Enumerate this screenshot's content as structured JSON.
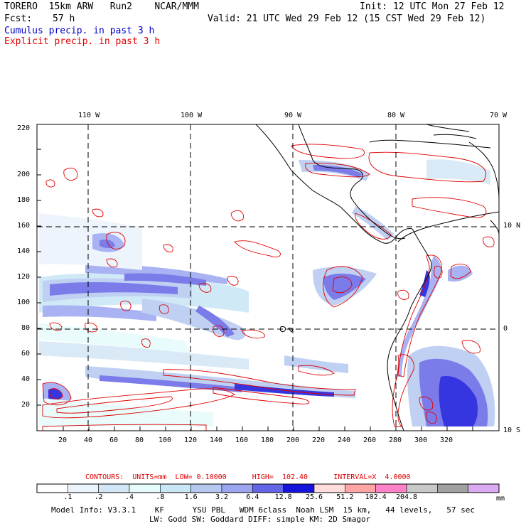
{
  "header": {
    "model": "TORERO  15km ARW   Run2    NCAR/MMM",
    "init": "Init: 12 UTC Mon 27 Feb 12",
    "fcst_label": "Fcst:",
    "fcst_value": "57 h",
    "valid": "Valid: 21 UTC Wed 29 Feb 12 (15 CST Wed 29 Feb 12)",
    "field1": "Cumulus precip. in past 3 h",
    "field2": "Explicit precip. in past 3 h"
  },
  "colors": {
    "cumulus": "#0000c8",
    "explicit": "#e00000",
    "coast": "#000000"
  },
  "map": {
    "lon_labels": [
      "110 W",
      "100 W",
      "90 W",
      "80 W",
      "70 W"
    ],
    "lat_labels": [
      "10 N",
      "0",
      "10 S"
    ],
    "x_ticks": [
      "20",
      "40",
      "60",
      "80",
      "100",
      "120",
      "140",
      "160",
      "180",
      "200",
      "220",
      "240",
      "260",
      "280",
      "300",
      "320"
    ],
    "y_ticks": [
      "20",
      "40",
      "60",
      "80",
      "100",
      "120",
      "140",
      "160",
      "180",
      "200",
      "220"
    ]
  },
  "contours": {
    "text": "CONTOURS:  UNITS=mm  LOW= 0.10000      HIGH=  102.40      INTERVAL=X  4.0000"
  },
  "colorbar": {
    "unit": "mm",
    "colors": [
      "#ffffff",
      "#ebf3fb",
      "#d3e6f5",
      "#e6fbfb",
      "#c8e6f5",
      "#b4c8f0",
      "#9ba5f0",
      "#6464e6",
      "#1414dc",
      "#ffdcdc",
      "#ffa5a5",
      "#ff82c8",
      "#c8c8c8",
      "#a0a0a0",
      "#dcaaf0"
    ],
    "labels": [
      ".1",
      ".2",
      ".4",
      ".8",
      "1.6",
      "3.2",
      "6.4",
      "12.8",
      "25.6",
      "51.2",
      "102.4",
      "204.8"
    ]
  },
  "footer": {
    "line1": "Model Info: V3.3.1    KF      YSU PBL   WDM 6class  Noah LSM  15 km,   44 levels,   57 sec",
    "line2": "LW: Godd SW: Goddard DIFF: simple KM: 2D Smagor"
  }
}
